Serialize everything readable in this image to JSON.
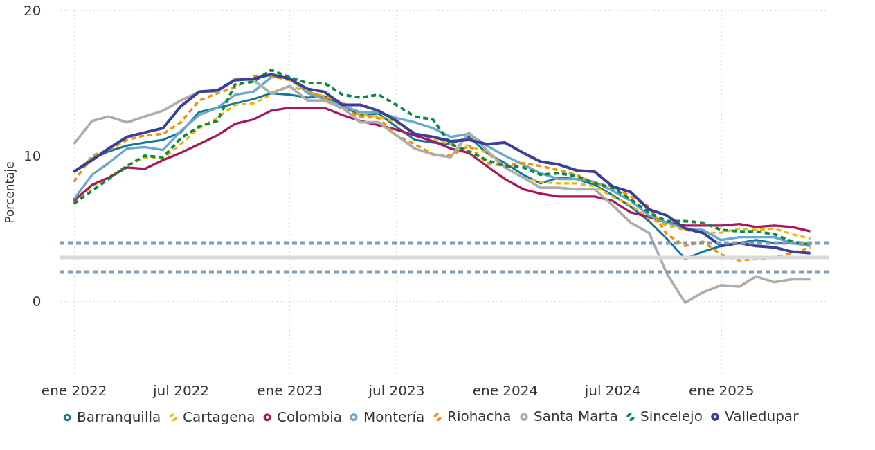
{
  "chart_data": {
    "type": "line",
    "ylabel": "Porcentaje",
    "x": [
      "2022-01",
      "2022-02",
      "2022-03",
      "2022-04",
      "2022-05",
      "2022-06",
      "2022-07",
      "2022-08",
      "2022-09",
      "2022-10",
      "2022-11",
      "2022-12",
      "2023-01",
      "2023-02",
      "2023-03",
      "2023-04",
      "2023-05",
      "2023-06",
      "2023-07",
      "2023-08",
      "2023-09",
      "2023-10",
      "2023-11",
      "2023-12",
      "2024-01",
      "2024-02",
      "2024-03",
      "2024-04",
      "2024-05",
      "2024-06",
      "2024-07",
      "2024-08",
      "2024-09",
      "2024-10",
      "2024-11",
      "2024-12",
      "2025-01",
      "2025-02",
      "2025-03",
      "2025-04",
      "2025-05",
      "2025-06"
    ],
    "xlim": [
      "2021-12-09",
      "2025-07-02"
    ],
    "xticks": [
      {
        "value": "2022-01",
        "label": "ene 2022"
      },
      {
        "value": "2022-07",
        "label": "jul 2022"
      },
      {
        "value": "2023-01",
        "label": "ene 2023"
      },
      {
        "value": "2023-07",
        "label": "jul 2023"
      },
      {
        "value": "2024-01",
        "label": "ene 2024"
      },
      {
        "value": "2024-07",
        "label": "jul 2024"
      },
      {
        "value": "2025-01",
        "label": "ene 2025"
      }
    ],
    "ylim": [
      -5,
      20
    ],
    "yticks": [
      0,
      10,
      20
    ],
    "grid": true,
    "legend": "bottom",
    "marker": "none",
    "series": [
      {
        "name": "Barranquilla",
        "color": "#12759e",
        "line_style": "solid",
        "values": [
          8.9,
          9.8,
          10.3,
          10.7,
          10.9,
          11.1,
          11.6,
          13.0,
          13.3,
          13.6,
          13.9,
          14.3,
          14.2,
          14.0,
          14.1,
          13.4,
          12.8,
          12.9,
          12.0,
          11.1,
          10.9,
          10.8,
          11.3,
          10.2,
          9.5,
          8.7,
          8.1,
          8.5,
          8.4,
          8.0,
          7.3,
          6.5,
          5.5,
          4.3,
          2.9,
          3.4,
          3.8,
          4.0,
          4.2,
          4.0,
          4.0,
          3.9
        ]
      },
      {
        "name": "Cartagena",
        "color": "#f0b800",
        "line_style": "dashed",
        "values": [
          6.8,
          7.9,
          8.5,
          9.3,
          9.9,
          9.8,
          10.8,
          11.9,
          12.6,
          13.5,
          13.6,
          14.2,
          14.8,
          14.4,
          14.1,
          13.7,
          12.8,
          12.7,
          12.3,
          11.6,
          11.1,
          10.8,
          10.7,
          10.2,
          9.2,
          8.5,
          8.2,
          8.1,
          8.1,
          7.9,
          7.2,
          6.6,
          5.7,
          5.2,
          4.9,
          4.7,
          4.7,
          5.0,
          4.9,
          5.0,
          4.6,
          4.3
        ]
      },
      {
        "name": "Colombia",
        "color": "#a6175c",
        "line_style": "solid",
        "values": [
          6.9,
          8.0,
          8.5,
          9.2,
          9.1,
          9.7,
          10.2,
          10.8,
          11.4,
          12.2,
          12.5,
          13.1,
          13.3,
          13.3,
          13.3,
          12.8,
          12.4,
          12.1,
          11.8,
          11.4,
          11.0,
          10.5,
          10.2,
          9.3,
          8.4,
          7.7,
          7.4,
          7.2,
          7.2,
          7.2,
          6.9,
          6.1,
          5.8,
          5.4,
          5.2,
          5.2,
          5.2,
          5.3,
          5.1,
          5.2,
          5.1,
          4.8
        ]
      },
      {
        "name": "Montería",
        "color": "#6aa8d0",
        "line_style": "solid",
        "values": [
          7.0,
          8.7,
          9.5,
          10.5,
          10.6,
          10.4,
          11.7,
          12.8,
          13.3,
          14.2,
          14.4,
          15.4,
          15.4,
          14.3,
          13.9,
          13.4,
          13.0,
          13.0,
          12.6,
          12.3,
          11.9,
          11.3,
          11.5,
          10.7,
          10.0,
          9.4,
          8.8,
          8.4,
          8.4,
          8.2,
          7.6,
          6.9,
          5.9,
          5.4,
          5.0,
          4.9,
          4.2,
          4.4,
          4.4,
          4.4,
          4.0,
          3.8
        ]
      },
      {
        "name": "Riohacha",
        "color": "#f49200",
        "line_style": "dashed",
        "values": [
          8.2,
          10.0,
          10.4,
          11.1,
          11.4,
          11.5,
          12.3,
          13.8,
          14.3,
          14.7,
          15.5,
          15.5,
          15.2,
          14.5,
          14.0,
          13.2,
          12.7,
          12.6,
          11.4,
          10.8,
          10.1,
          10.0,
          10.7,
          9.5,
          9.3,
          9.5,
          9.3,
          9.0,
          8.7,
          8.1,
          7.9,
          7.2,
          6.5,
          4.6,
          3.8,
          4.1,
          3.2,
          2.8,
          2.9,
          3.0,
          3.3,
          3.7
        ]
      },
      {
        "name": "Santa Marta",
        "color": "#adadad",
        "line_style": "solid",
        "values": [
          10.8,
          12.4,
          12.7,
          12.3,
          12.7,
          13.1,
          13.8,
          14.4,
          14.4,
          15.3,
          15.2,
          14.3,
          14.8,
          13.8,
          13.8,
          13.3,
          12.3,
          12.3,
          11.4,
          10.5,
          10.1,
          9.9,
          11.6,
          10.4,
          9.2,
          8.5,
          7.8,
          7.8,
          7.7,
          7.7,
          6.6,
          5.4,
          4.7,
          1.9,
          -0.1,
          0.6,
          1.1,
          1.0,
          1.7,
          1.3,
          1.5,
          1.5
        ]
      },
      {
        "name": "Sincelejo",
        "color": "#0c8a41",
        "line_style": "dashed",
        "values": [
          6.7,
          7.6,
          8.4,
          9.3,
          10.0,
          9.9,
          11.2,
          12.0,
          12.4,
          14.9,
          15.1,
          15.9,
          15.4,
          15.0,
          15.0,
          14.2,
          14.0,
          14.2,
          13.5,
          12.7,
          12.5,
          10.8,
          10.3,
          9.7,
          9.3,
          9.2,
          8.7,
          8.8,
          8.6,
          8.1,
          7.8,
          7.0,
          6.1,
          5.5,
          5.5,
          5.4,
          4.9,
          4.8,
          4.8,
          4.6,
          4.1,
          3.9
        ]
      },
      {
        "name": "Valledupar",
        "color": "#3b3f9a",
        "line_style": "solid",
        "values": [
          8.9,
          9.7,
          10.5,
          11.3,
          11.6,
          11.9,
          13.4,
          14.4,
          14.5,
          15.2,
          15.3,
          15.6,
          15.3,
          14.6,
          14.4,
          13.5,
          13.5,
          13.1,
          12.4,
          11.5,
          11.3,
          11.0,
          11.1,
          10.8,
          10.9,
          10.2,
          9.6,
          9.4,
          9.0,
          8.9,
          7.9,
          7.5,
          6.3,
          5.9,
          5.0,
          4.7,
          3.8,
          4.0,
          3.8,
          3.7,
          3.4,
          3.3
        ]
      }
    ],
    "ref_lines": [
      {
        "axis": "y",
        "value": 4,
        "color": "#7f9bb5",
        "line_style": "dashed"
      },
      {
        "axis": "y",
        "value": 3,
        "color": "#d9d9d9",
        "line_style": "solid"
      },
      {
        "axis": "y",
        "value": 2,
        "color": "#7f9bb5",
        "line_style": "dashed"
      }
    ]
  }
}
